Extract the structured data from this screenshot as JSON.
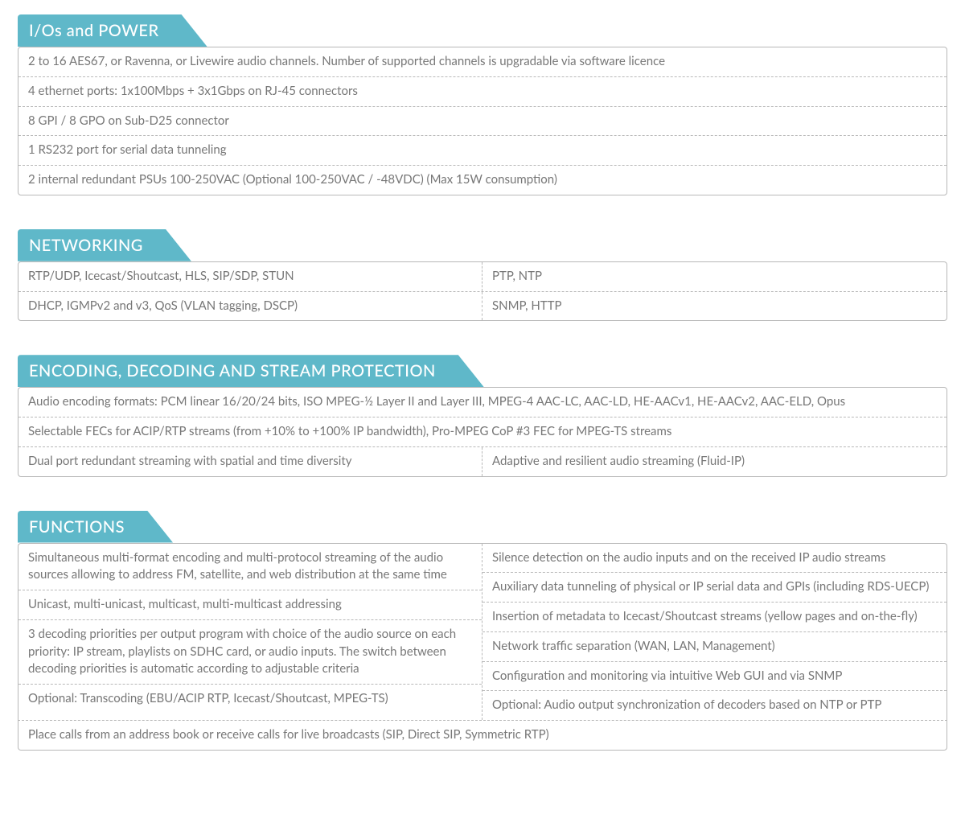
{
  "colors": {
    "header_bg": "#5fb8c9",
    "header_text": "#ffffff",
    "border": "#b8b8b8",
    "text": "#777777",
    "background": "#ffffff"
  },
  "sections": {
    "ios_power": {
      "title": "I/Os and POWER",
      "rows": [
        "2 to 16 AES67, or Ravenna, or Livewire audio channels. Number of supported channels is upgradable via software licence",
        "4 ethernet ports: 1x100Mbps + 3x1Gbps on RJ-45 connectors",
        "8 GPI / 8 GPO on Sub-D25 connector",
        "1 RS232 port for serial data tunneling",
        "2 internal redundant PSUs 100-250VAC (Optional 100-250VAC / -48VDC) (Max 15W consumption)"
      ]
    },
    "networking": {
      "title": "NETWORKING",
      "rows": [
        {
          "left": "RTP/UDP, Icecast/Shoutcast, HLS, SIP/SDP, STUN",
          "right": "PTP, NTP"
        },
        {
          "left": "DHCP, IGMPv2 and v3, QoS (VLAN tagging, DSCP)",
          "right": "SNMP, HTTP"
        }
      ]
    },
    "encoding": {
      "title": "ENCODING, DECODING AND STREAM PROTECTION",
      "full_rows": [
        "Audio encoding formats: PCM linear 16/20/24 bits, ISO MPEG-½ Layer II and Layer III, MPEG-4 AAC-LC, AAC-LD, HE-AACv1, HE-AACv2, AAC-ELD, Opus",
        "Selectable FECs for ACIP/RTP streams (from +10% to +100% IP bandwidth), Pro-MPEG CoP #3 FEC for MPEG-TS streams"
      ],
      "split_row": {
        "left": "Dual port redundant streaming with spatial and time diversity",
        "right": "Adaptive and resilient audio streaming (Fluid-IP)"
      }
    },
    "functions": {
      "title": "FUNCTIONS",
      "left_col": [
        "Simultaneous multi-format encoding and multi-protocol streaming of the audio sources allowing to address FM, satellite, and web distribution at the same time",
        "Unicast, multi-unicast, multicast, multi-multicast addressing",
        "3 decoding priorities per output program with choice of the audio source on each priority: IP stream, playlists on SDHC card, or audio inputs. The switch between decoding priorities is automatic according to adjustable criteria",
        "Optional: Transcoding (EBU/ACIP RTP, Icecast/Shoutcast, MPEG-TS)"
      ],
      "right_col": [
        "Silence detection on the audio inputs and on the received IP audio streams",
        "Auxiliary data tunneling of physical or IP serial data and GPIs (including RDS-UECP)",
        "Insertion of metadata to Icecast/Shoutcast streams (yellow pages and on-the-fly)",
        "Network traffic separation (WAN, LAN, Management)",
        "Configuration and monitoring via intuitive Web GUI and via SNMP",
        "Optional: Audio output synchronization of decoders based on NTP or PTP"
      ],
      "bottom_row": "Place calls from an address book or receive calls for live broadcasts (SIP, Direct SIP, Symmetric RTP)"
    }
  }
}
